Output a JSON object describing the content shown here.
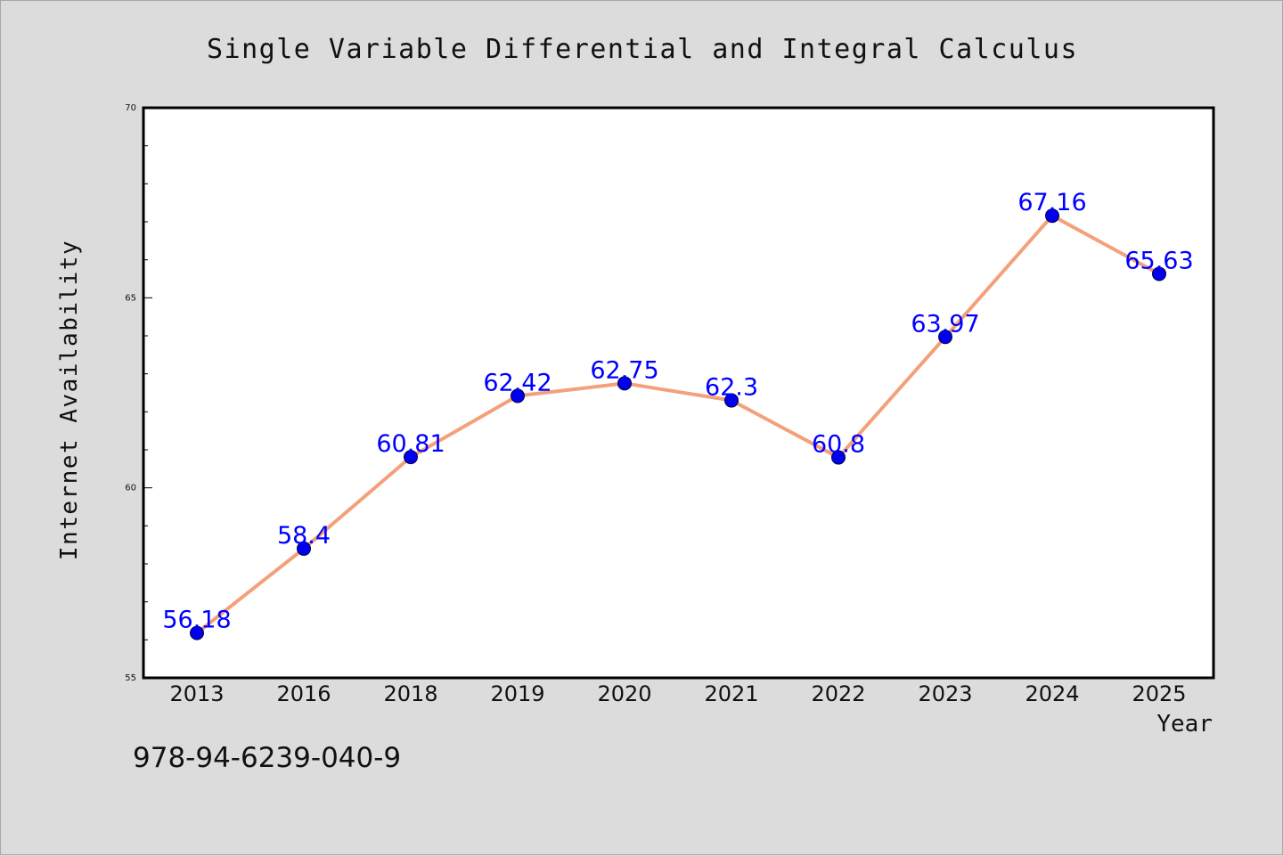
{
  "chart_data": {
    "type": "line",
    "title": "Single Variable Differential and Integral Calculus",
    "xlabel": "Year",
    "ylabel": "Internet Availability",
    "categories": [
      "2013",
      "2016",
      "2018",
      "2019",
      "2020",
      "2021",
      "2022",
      "2023",
      "2024",
      "2025"
    ],
    "values": [
      56.18,
      58.4,
      60.81,
      62.42,
      62.75,
      62.3,
      60.8,
      63.97,
      67.16,
      65.63
    ],
    "data_labels": [
      "56.18",
      "58.4",
      "60.81",
      "62.42",
      "62.75",
      "62.3",
      "60.8",
      "63.97",
      "67.16",
      "65.63"
    ],
    "ylim": [
      55,
      70
    ],
    "y_ticks": [
      "55",
      "60",
      "65",
      "70"
    ],
    "grid": false,
    "line_color": "#f4a07a",
    "marker_color": "#0000ee",
    "label_color": "#0000ff"
  },
  "footer": {
    "isbn": "978-94-6239-040-9"
  }
}
